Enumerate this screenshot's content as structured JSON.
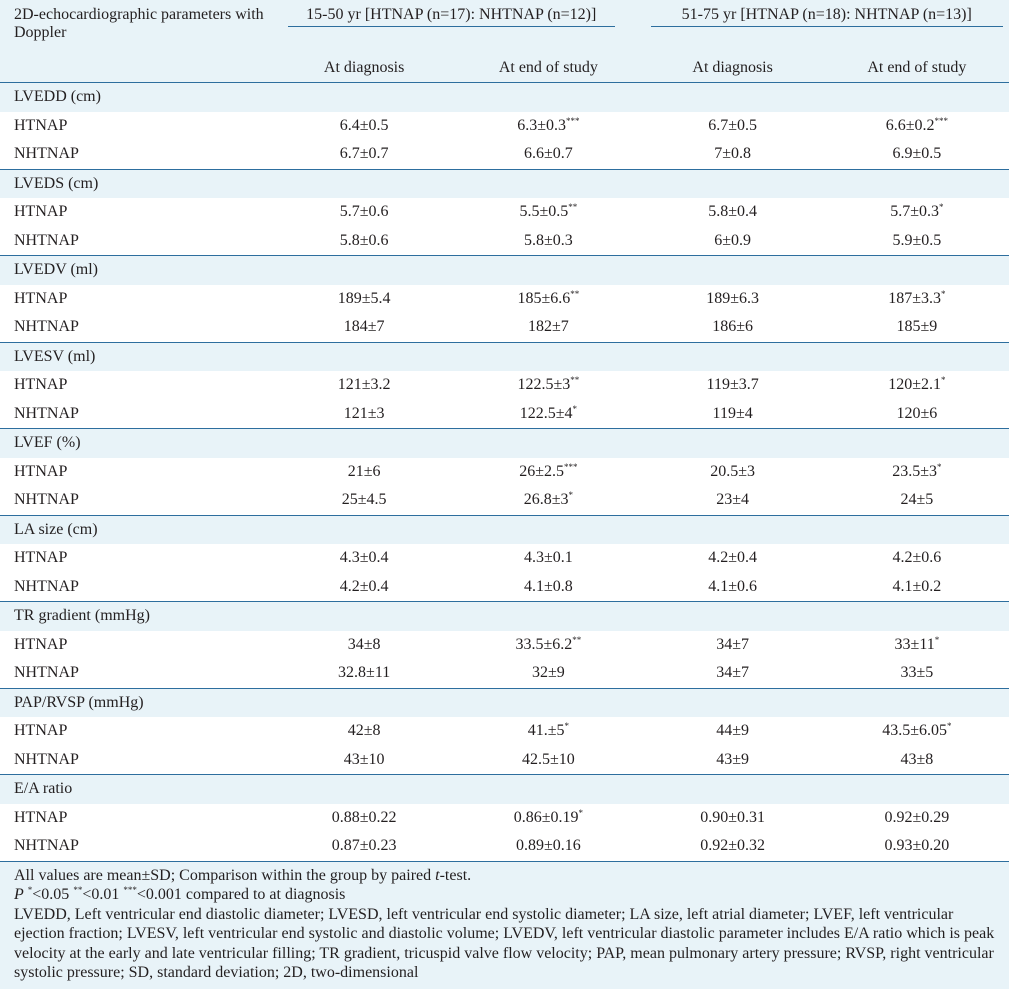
{
  "header": {
    "param_label": "2D-echocardiographic parameters with Doppler",
    "group1": "15-50 yr [HTNAP (n=17): NHTNAP (n=12)]",
    "group2": "51-75 yr [HTNAP (n=18): NHTNAP (n=13)]",
    "sub": [
      "At diagnosis",
      "At end of study",
      "At diagnosis",
      "At end of study"
    ]
  },
  "sections": [
    {
      "title": "LVEDD (cm)",
      "rows": [
        {
          "label": "HTNAP",
          "v": [
            "6.4±0.5",
            "6.3±0.3",
            "6.7±0.5",
            "6.6±0.2"
          ],
          "s": [
            "",
            "***",
            "",
            "***"
          ]
        },
        {
          "label": "NHTNAP",
          "v": [
            "6.7±0.7",
            "6.6±0.7",
            "7±0.8",
            "6.9±0.5"
          ],
          "s": [
            "",
            "",
            "",
            ""
          ]
        }
      ]
    },
    {
      "title": "LVEDS (cm)",
      "rows": [
        {
          "label": "HTNAP",
          "v": [
            "5.7±0.6",
            "5.5±0.5",
            "5.8±0.4",
            "5.7±0.3"
          ],
          "s": [
            "",
            "**",
            "",
            "*"
          ]
        },
        {
          "label": "NHTNAP",
          "v": [
            "5.8±0.6",
            "5.8±0.3",
            "6±0.9",
            "5.9±0.5"
          ],
          "s": [
            "",
            "",
            "",
            ""
          ]
        }
      ]
    },
    {
      "title": "LVEDV (ml)",
      "rows": [
        {
          "label": "HTNAP",
          "v": [
            "189±5.4",
            "185±6.6",
            "189±6.3",
            "187±3.3"
          ],
          "s": [
            "",
            "**",
            "",
            "*"
          ]
        },
        {
          "label": "NHTNAP",
          "v": [
            "184±7",
            "182±7",
            "186±6",
            "185±9"
          ],
          "s": [
            "",
            "",
            "",
            ""
          ]
        }
      ]
    },
    {
      "title": "LVESV (ml)",
      "rows": [
        {
          "label": "HTNAP",
          "v": [
            "121±3.2",
            "122.5±3",
            "119±3.7",
            "120±2.1"
          ],
          "s": [
            "",
            "**",
            "",
            "*"
          ]
        },
        {
          "label": "NHTNAP",
          "v": [
            "121±3",
            "122.5±4",
            "119±4",
            "120±6"
          ],
          "s": [
            "",
            "*",
            "",
            ""
          ]
        }
      ]
    },
    {
      "title": "LVEF (%)",
      "rows": [
        {
          "label": "HTNAP",
          "v": [
            "21±6",
            "26±2.5",
            "20.5±3",
            "23.5±3"
          ],
          "s": [
            "",
            "***",
            "",
            "*"
          ]
        },
        {
          "label": "NHTNAP",
          "v": [
            "25±4.5",
            "26.8±3",
            "23±4",
            "24±5"
          ],
          "s": [
            "",
            "*",
            "",
            ""
          ]
        }
      ]
    },
    {
      "title": "LA size (cm)",
      "rows": [
        {
          "label": "HTNAP",
          "v": [
            "4.3±0.4",
            "4.3±0.1",
            "4.2±0.4",
            "4.2±0.6"
          ],
          "s": [
            "",
            "",
            "",
            ""
          ]
        },
        {
          "label": "NHTNAP",
          "v": [
            "4.2±0.4",
            "4.1±0.8",
            "4.1±0.6",
            "4.1±0.2"
          ],
          "s": [
            "",
            "",
            "",
            ""
          ]
        }
      ]
    },
    {
      "title": "TR gradient (mmHg)",
      "rows": [
        {
          "label": "HTNAP",
          "v": [
            "34±8",
            "33.5±6.2",
            "34±7",
            "33±11"
          ],
          "s": [
            "",
            "**",
            "",
            "*"
          ]
        },
        {
          "label": "NHTNAP",
          "v": [
            "32.8±11",
            "32±9",
            "34±7",
            "33±5"
          ],
          "s": [
            "",
            "",
            "",
            ""
          ]
        }
      ]
    },
    {
      "title": "PAP/RVSP (mmHg)",
      "rows": [
        {
          "label": "HTNAP",
          "v": [
            "42±8",
            "41.±5",
            "44±9",
            "43.5±6.05"
          ],
          "s": [
            "",
            "*",
            "",
            "*"
          ]
        },
        {
          "label": "NHTNAP",
          "v": [
            "43±10",
            "42.5±10",
            "43±9",
            "43±8"
          ],
          "s": [
            "",
            "",
            "",
            ""
          ]
        }
      ]
    },
    {
      "title": "E/A ratio",
      "rows": [
        {
          "label": "HTNAP",
          "v": [
            "0.88±0.22",
            "0.86±0.19",
            "0.90±0.31",
            "0.92±0.29"
          ],
          "s": [
            "",
            "*",
            "",
            ""
          ]
        },
        {
          "label": "NHTNAP",
          "v": [
            "0.87±0.23",
            "0.89±0.16",
            "0.92±0.32",
            "0.93±0.20"
          ],
          "s": [
            "",
            "",
            "",
            ""
          ]
        }
      ]
    }
  ],
  "notes": {
    "line1_a": "All values are mean±SD; Comparison within the group by paired ",
    "line1_t": "t",
    "line1_b": "-test.",
    "p_label": "P",
    "p_s1": "*",
    "p_t1": "<0.05 ",
    "p_s2": "**",
    "p_t2": "<0.01 ",
    "p_s3": "***",
    "p_t3": "<0.001 compared to at diagnosis",
    "abbrev": "LVEDD, Left ventricular end diastolic diameter; LVESD, left ventricular end systolic diameter; LA size, left atrial diameter; LVEF, left ventricular ejection fraction; LVESV, left ventricular end systolic and diastolic volume; LVEDV, left ventricular diastolic parameter includes E/A ratio which is peak velocity at the early and late ventricular filling; TR gradient, tricuspid valve flow velocity; PAP, mean pulmonary artery pressure; RVSP, right ventricular systolic pressure; SD, standard deviation; 2D, two-dimensional"
  }
}
